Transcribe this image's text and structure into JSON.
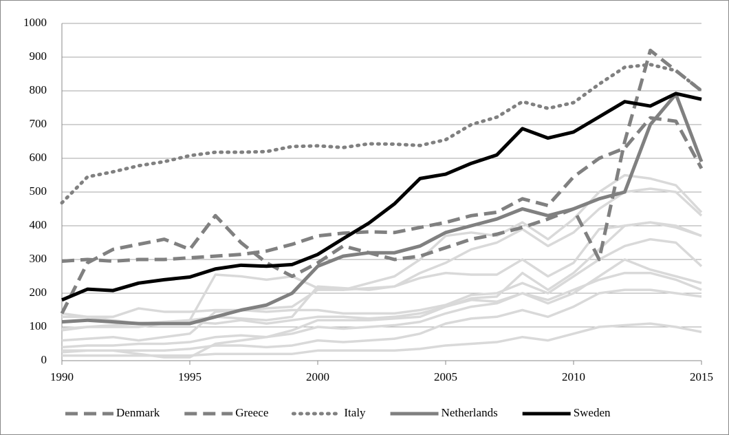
{
  "chart_data": {
    "type": "line",
    "x": [
      1990,
      1991,
      1992,
      1993,
      1994,
      1995,
      1996,
      1997,
      1998,
      1999,
      2000,
      2001,
      2002,
      2003,
      2004,
      2005,
      2006,
      2007,
      2008,
      2009,
      2010,
      2011,
      2012,
      2013,
      2014,
      2015
    ],
    "xlim": [
      1990,
      2015
    ],
    "xticks": [
      1990,
      1995,
      2000,
      2005,
      2010,
      2015
    ],
    "ylim": [
      0,
      1000
    ],
    "yticks": [
      0,
      100,
      200,
      300,
      400,
      500,
      600,
      700,
      800,
      900,
      1000
    ],
    "grid": true,
    "legend": "bottom",
    "series": [
      {
        "color": "#d9d9d9",
        "values": [
          90,
          100,
          105,
          110,
          115,
          120,
          255,
          250,
          240,
          250,
          215,
          210,
          215,
          220,
          245,
          260,
          255,
          255,
          300,
          250,
          290,
          390,
          400,
          410,
          400,
          370
        ]
      },
      {
        "color": "#d9d9d9",
        "values": [
          60,
          65,
          70,
          60,
          70,
          80,
          145,
          150,
          155,
          160,
          210,
          210,
          230,
          250,
          300,
          370,
          380,
          370,
          410,
          360,
          420,
          500,
          550,
          540,
          520,
          440
        ]
      },
      {
        "color": "#d9d9d9",
        "values": [
          130,
          130,
          130,
          155,
          145,
          145,
          150,
          150,
          145,
          150,
          150,
          140,
          140,
          140,
          150,
          165,
          195,
          200,
          230,
          200,
          250,
          300,
          340,
          360,
          350,
          280
        ]
      },
      {
        "color": "#d9d9d9",
        "values": [
          40,
          45,
          45,
          50,
          50,
          55,
          70,
          75,
          70,
          80,
          100,
          95,
          100,
          105,
          115,
          140,
          160,
          170,
          200,
          180,
          210,
          240,
          260,
          260,
          240,
          210
        ]
      },
      {
        "color": "#d9d9d9",
        "values": [
          25,
          30,
          30,
          30,
          30,
          35,
          45,
          45,
          40,
          45,
          60,
          55,
          60,
          65,
          80,
          110,
          125,
          130,
          150,
          130,
          160,
          200,
          210,
          210,
          200,
          190
        ]
      },
      {
        "color": "#d9d9d9",
        "values": [
          15,
          15,
          15,
          15,
          15,
          15,
          20,
          20,
          20,
          20,
          30,
          30,
          30,
          30,
          35,
          45,
          50,
          55,
          70,
          60,
          80,
          100,
          105,
          110,
          100,
          85
        ]
      },
      {
        "color": "#d9d9d9",
        "values": [
          95,
          100,
          100,
          100,
          110,
          115,
          110,
          120,
          110,
          120,
          130,
          130,
          125,
          130,
          140,
          160,
          185,
          190,
          260,
          210,
          260,
          330,
          400,
          410,
          395,
          370
        ]
      },
      {
        "color": "#d9d9d9",
        "values": [
          30,
          30,
          30,
          20,
          10,
          10,
          50,
          60,
          70,
          90,
          120,
          120,
          120,
          125,
          130,
          160,
          180,
          175,
          200,
          170,
          200,
          250,
          300,
          270,
          250,
          230
        ]
      },
      {
        "color": "#d9d9d9",
        "values": [
          140,
          130,
          120,
          110,
          110,
          120,
          130,
          125,
          120,
          130,
          220,
          215,
          210,
          220,
          260,
          290,
          330,
          350,
          390,
          340,
          380,
          450,
          500,
          510,
          500,
          430
        ]
      },
      {
        "name": "Denmark",
        "color": "#808080",
        "style": "dash",
        "values": [
          295,
          300,
          295,
          300,
          300,
          305,
          310,
          315,
          325,
          345,
          370,
          378,
          382,
          380,
          395,
          410,
          430,
          440,
          480,
          460,
          545,
          600,
          630,
          720,
          710,
          570
        ]
      },
      {
        "name": "Greece",
        "color": "#808080",
        "style": "dash",
        "values": [
          140,
          290,
          330,
          345,
          360,
          330,
          430,
          350,
          290,
          250,
          290,
          340,
          320,
          300,
          310,
          335,
          360,
          375,
          395,
          420,
          450,
          300,
          650,
          920,
          860,
          800
        ]
      },
      {
        "name": "Italy",
        "color": "#808080",
        "style": "dot",
        "values": [
          468,
          545,
          560,
          578,
          590,
          608,
          618,
          618,
          620,
          635,
          637,
          632,
          643,
          642,
          638,
          655,
          700,
          722,
          768,
          748,
          765,
          820,
          870,
          878,
          860,
          800
        ]
      },
      {
        "name": "Netherlands",
        "color": "#808080",
        "style": "solid",
        "values": [
          115,
          120,
          115,
          110,
          110,
          110,
          130,
          150,
          165,
          200,
          280,
          310,
          320,
          320,
          340,
          380,
          400,
          420,
          450,
          430,
          450,
          480,
          500,
          700,
          790,
          590
        ]
      },
      {
        "name": "Sweden",
        "color": "#000000",
        "style": "solid",
        "values": [
          180,
          212,
          208,
          230,
          240,
          248,
          272,
          283,
          280,
          285,
          315,
          362,
          408,
          465,
          540,
          553,
          585,
          610,
          688,
          660,
          678,
          723,
          768,
          755,
          792,
          775
        ]
      }
    ]
  }
}
